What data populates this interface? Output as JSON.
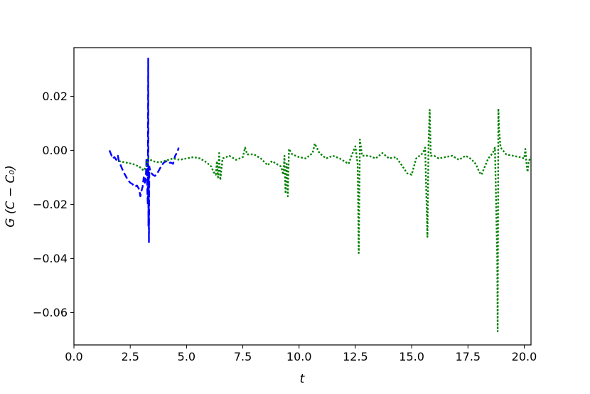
{
  "chart_data": {
    "type": "line",
    "xlabel": "t",
    "ylabel": "G (C − C₀)",
    "xlim": [
      0,
      20.3
    ],
    "ylim": [
      -0.072,
      0.038
    ],
    "x_ticks": [
      0.0,
      2.5,
      5.0,
      7.5,
      10.0,
      12.5,
      15.0,
      17.5,
      20.0
    ],
    "x_tick_labels": [
      "0.0",
      "2.5",
      "5.0",
      "7.5",
      "10.0",
      "12.5",
      "15.0",
      "17.5",
      "20.0"
    ],
    "y_ticks": [
      0.02,
      0.0,
      -0.02,
      -0.04,
      -0.06
    ],
    "y_tick_labels": [
      "0.02",
      "0.00",
      "−0.02",
      "−0.04",
      "−0.06"
    ],
    "grid": false,
    "series": [
      {
        "color": "#0000ff",
        "style": "dashed",
        "points": [
          [
            1.58,
            0.0
          ],
          [
            1.65,
            -0.0015
          ],
          [
            1.72,
            -0.003
          ],
          [
            1.8,
            -0.0025
          ],
          [
            1.88,
            -0.0035
          ],
          [
            1.95,
            -0.002
          ],
          [
            2.0,
            -0.004
          ],
          [
            2.1,
            -0.006
          ],
          [
            2.2,
            -0.008
          ],
          [
            2.3,
            -0.0095
          ],
          [
            2.4,
            -0.011
          ],
          [
            2.5,
            -0.012
          ],
          [
            2.6,
            -0.0125
          ],
          [
            2.7,
            -0.0135
          ],
          [
            2.8,
            -0.013
          ],
          [
            2.9,
            -0.0145
          ],
          [
            2.95,
            -0.017
          ],
          [
            3.0,
            -0.015
          ],
          [
            3.05,
            -0.0135
          ],
          [
            3.1,
            -0.01
          ],
          [
            3.15,
            -0.012
          ],
          [
            3.2,
            -0.0085
          ],
          [
            3.22,
            -0.003
          ],
          [
            3.25,
            -0.012
          ],
          [
            3.28,
            -0.02
          ],
          [
            3.3,
            0.034
          ],
          [
            3.31,
            -0.028
          ],
          [
            3.32,
            -0.008
          ],
          [
            3.33,
            -0.034
          ],
          [
            3.35,
            -0.006
          ],
          [
            3.4,
            -0.008
          ],
          [
            3.5,
            -0.009
          ],
          [
            3.6,
            -0.0095
          ],
          [
            3.7,
            -0.0085
          ],
          [
            3.8,
            -0.007
          ],
          [
            3.9,
            -0.0055
          ],
          [
            4.0,
            -0.0045
          ],
          [
            4.1,
            -0.004
          ],
          [
            4.2,
            -0.0048
          ],
          [
            4.3,
            -0.0045
          ],
          [
            4.4,
            -0.005
          ],
          [
            4.5,
            -0.002
          ],
          [
            4.6,
            -0.0005
          ],
          [
            4.65,
            0.001
          ]
        ]
      },
      {
        "color": "#008000",
        "style": "dotted",
        "points": [
          [
            2.0,
            -0.004
          ],
          [
            2.3,
            -0.0045
          ],
          [
            2.6,
            -0.005
          ],
          [
            2.9,
            -0.006
          ],
          [
            3.1,
            -0.0075
          ],
          [
            3.2,
            -0.006
          ],
          [
            3.3,
            -0.003
          ],
          [
            3.5,
            -0.004
          ],
          [
            3.8,
            -0.0045
          ],
          [
            4.0,
            -0.004
          ],
          [
            4.4,
            -0.003
          ],
          [
            4.7,
            -0.0035
          ],
          [
            5.0,
            -0.003
          ],
          [
            5.3,
            -0.0025
          ],
          [
            5.6,
            -0.003
          ],
          [
            5.9,
            -0.0045
          ],
          [
            6.1,
            -0.006
          ],
          [
            6.2,
            -0.008
          ],
          [
            6.3,
            -0.009
          ],
          [
            6.35,
            -0.004
          ],
          [
            6.4,
            -0.01
          ],
          [
            6.45,
            -0.001
          ],
          [
            6.5,
            -0.011
          ],
          [
            6.6,
            -0.003
          ],
          [
            6.9,
            -0.002
          ],
          [
            7.2,
            -0.0035
          ],
          [
            7.5,
            -0.0025
          ],
          [
            7.6,
            0.001
          ],
          [
            7.7,
            -0.0015
          ],
          [
            8.0,
            -0.0015
          ],
          [
            8.3,
            -0.003
          ],
          [
            8.6,
            -0.0055
          ],
          [
            8.8,
            -0.004
          ],
          [
            9.0,
            -0.005
          ],
          [
            9.2,
            -0.006
          ],
          [
            9.3,
            -0.009
          ],
          [
            9.35,
            -0.002
          ],
          [
            9.4,
            -0.016
          ],
          [
            9.45,
            -0.005
          ],
          [
            9.5,
            -0.017
          ],
          [
            9.55,
            0.0005
          ],
          [
            9.7,
            -0.0015
          ],
          [
            10.0,
            -0.0025
          ],
          [
            10.3,
            -0.003
          ],
          [
            10.6,
            -0.001
          ],
          [
            10.7,
            0.0025
          ],
          [
            10.9,
            -0.001
          ],
          [
            11.2,
            -0.003
          ],
          [
            11.5,
            -0.002
          ],
          [
            11.8,
            -0.003
          ],
          [
            12.0,
            -0.004
          ],
          [
            12.2,
            -0.005
          ],
          [
            12.35,
            -0.0015
          ],
          [
            12.5,
            0.0015
          ],
          [
            12.6,
            -0.005
          ],
          [
            12.65,
            -0.038
          ],
          [
            12.7,
            0.004
          ],
          [
            12.8,
            -0.002
          ],
          [
            13.1,
            -0.002
          ],
          [
            13.4,
            -0.003
          ],
          [
            13.7,
            -0.001
          ],
          [
            14.0,
            -0.003
          ],
          [
            14.3,
            -0.0025
          ],
          [
            14.6,
            -0.006
          ],
          [
            14.8,
            -0.0085
          ],
          [
            15.0,
            -0.009
          ],
          [
            15.2,
            -0.003
          ],
          [
            15.5,
            -0.001
          ],
          [
            15.6,
            0.001
          ],
          [
            15.7,
            -0.032
          ],
          [
            15.75,
            0.003
          ],
          [
            15.8,
            0.015
          ],
          [
            15.85,
            -0.002
          ],
          [
            16.0,
            -0.002
          ],
          [
            16.2,
            -0.003
          ],
          [
            16.5,
            -0.0025
          ],
          [
            16.8,
            -0.002
          ],
          [
            17.1,
            -0.0035
          ],
          [
            17.4,
            -0.002
          ],
          [
            17.6,
            -0.003
          ],
          [
            17.8,
            -0.0045
          ],
          [
            17.9,
            -0.006
          ],
          [
            18.0,
            -0.008
          ],
          [
            18.1,
            -0.009
          ],
          [
            18.2,
            -0.007
          ],
          [
            18.4,
            -0.003
          ],
          [
            18.6,
            -0.001
          ],
          [
            18.7,
            0.001
          ],
          [
            18.8,
            -0.04
          ],
          [
            18.82,
            -0.067
          ],
          [
            18.85,
            0.0155
          ],
          [
            18.88,
            0.008
          ],
          [
            18.95,
            0.001
          ],
          [
            19.2,
            -0.0015
          ],
          [
            19.5,
            -0.002
          ],
          [
            19.8,
            -0.0025
          ],
          [
            20.0,
            -0.003
          ],
          [
            20.05,
            0.0005
          ],
          [
            20.1,
            -0.005
          ],
          [
            20.15,
            -0.008
          ],
          [
            20.2,
            -0.004
          ],
          [
            20.3,
            -0.0025
          ]
        ]
      }
    ]
  }
}
